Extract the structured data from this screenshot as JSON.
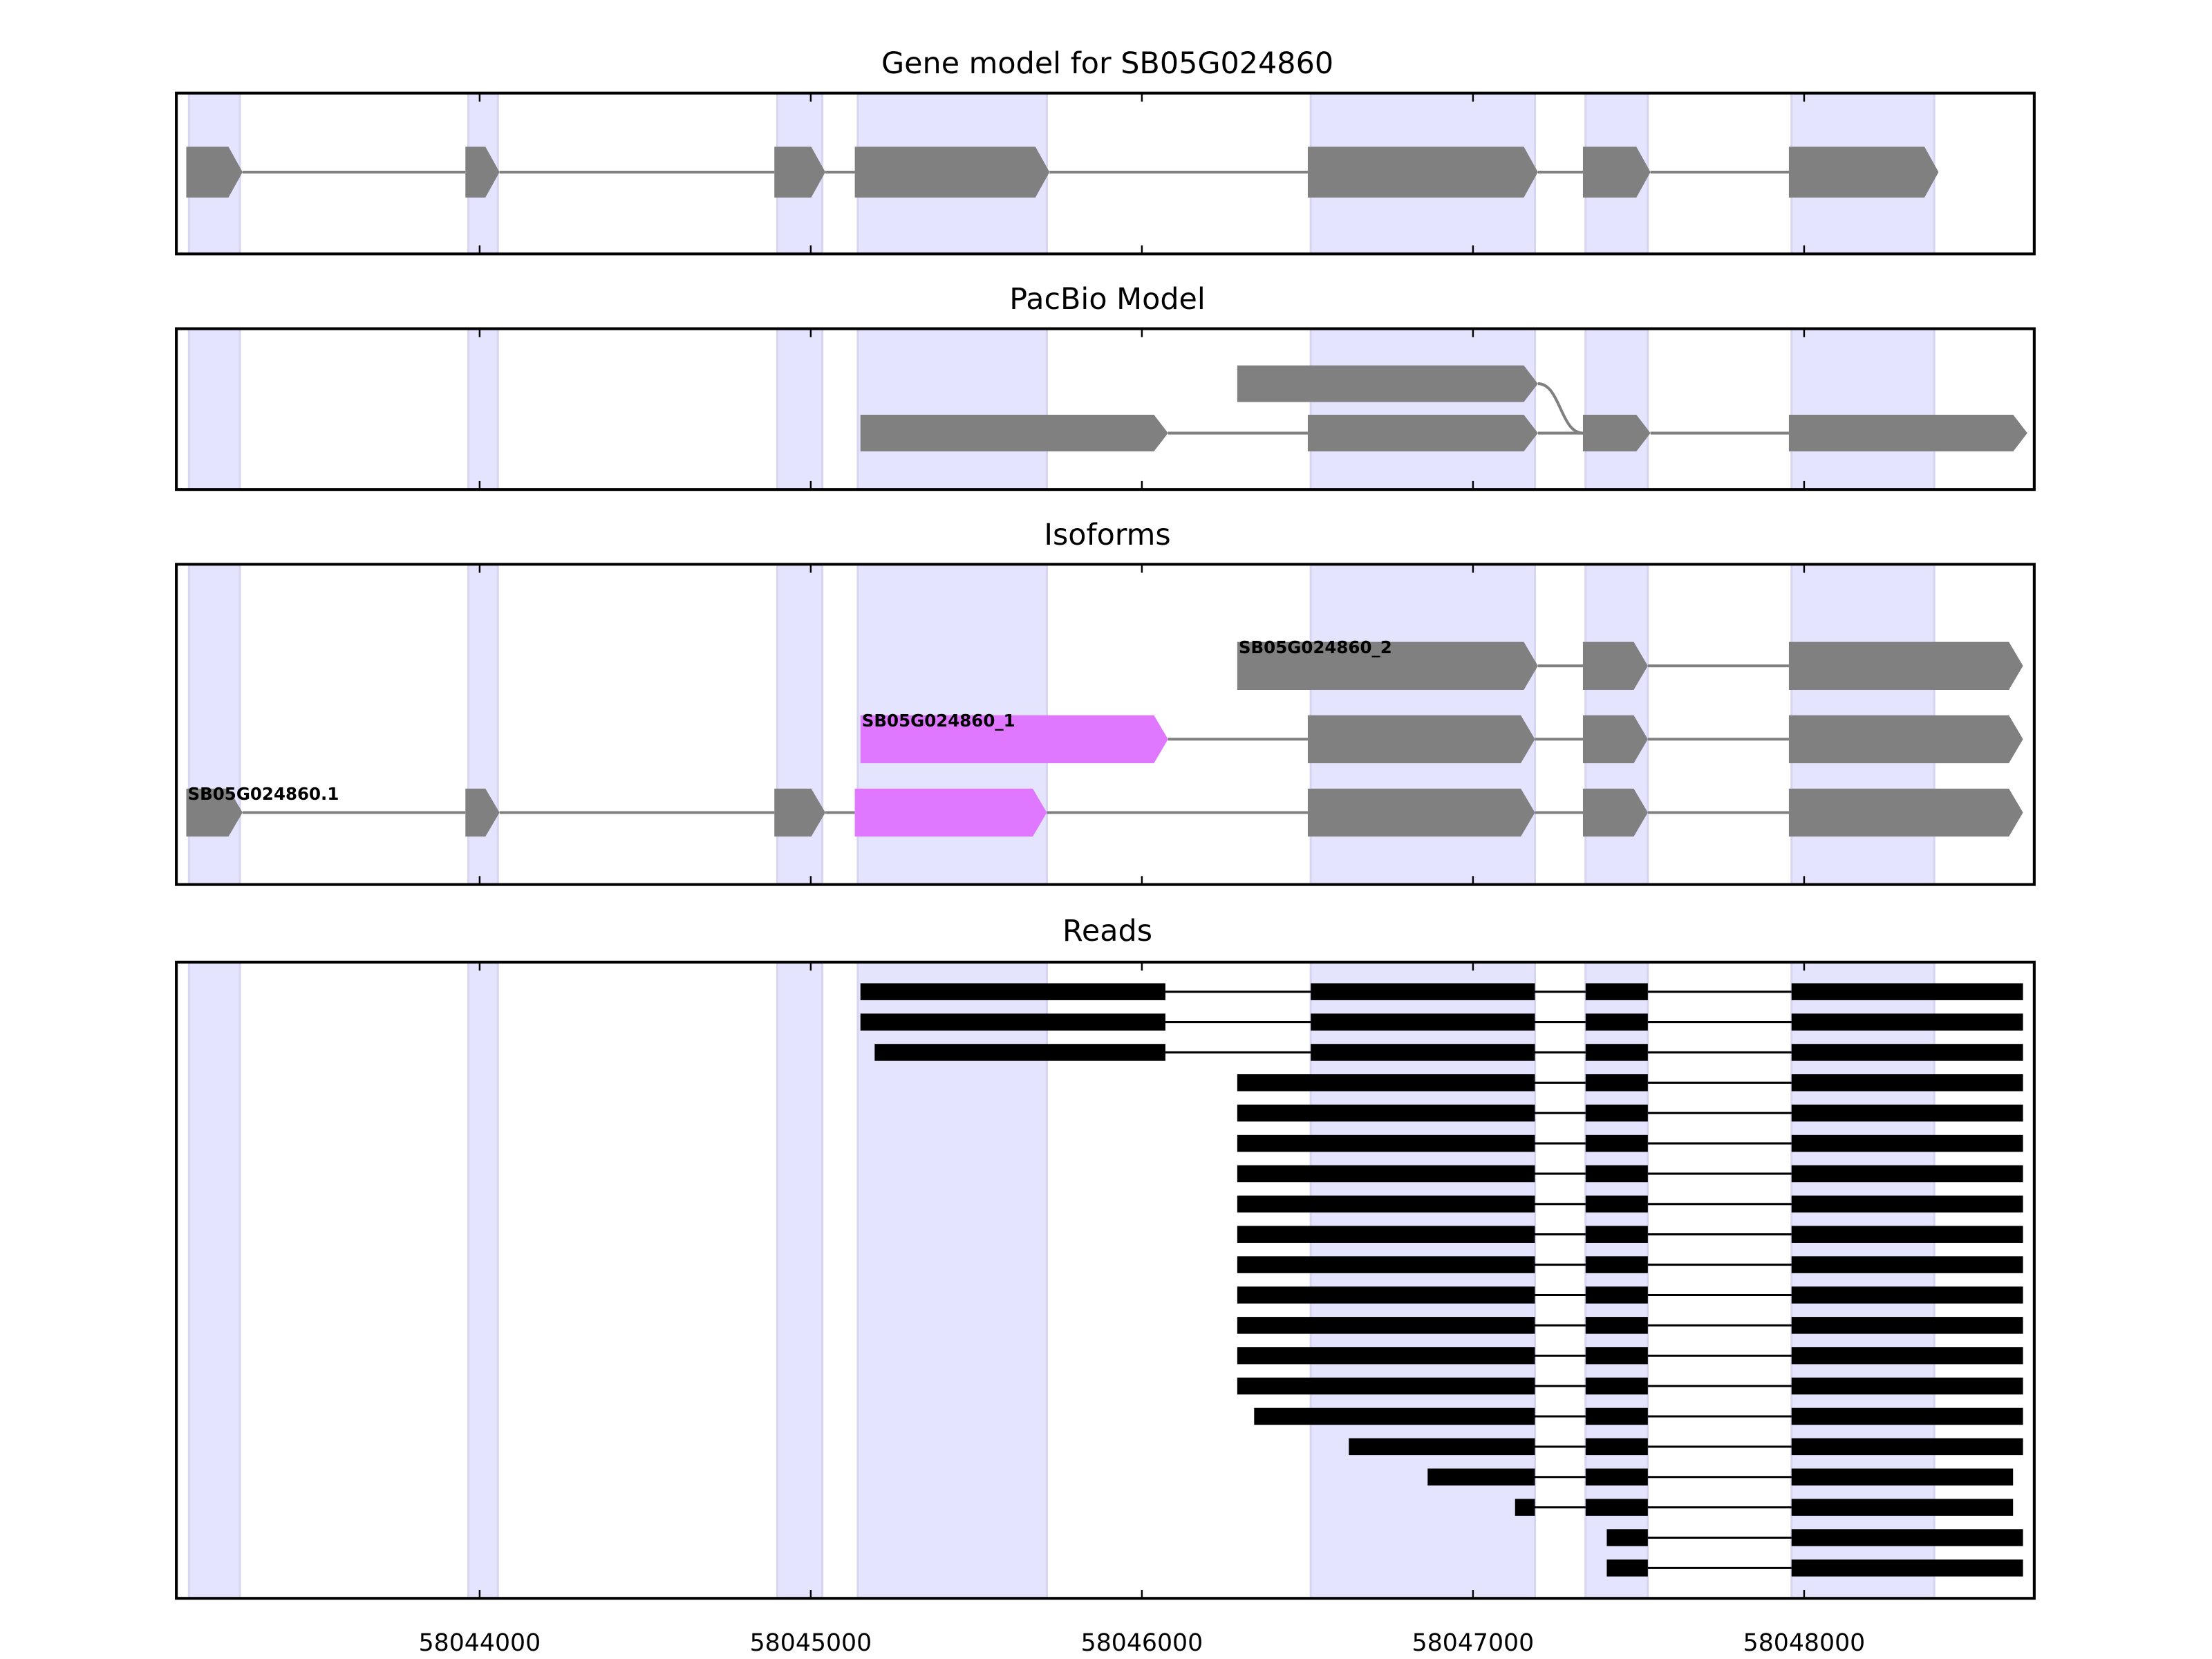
{
  "chart_data": {
    "type": "gene-track",
    "xlim": [
      58043084,
      58048695
    ],
    "x_ticks": [
      58044000,
      58045000,
      58046000,
      58047000,
      58048000
    ],
    "x_tick_labels": [
      "58044000",
      "58045000",
      "58046000",
      "58047000",
      "58048000"
    ],
    "colors": {
      "exon": "#808080",
      "highlight": "#df77ff",
      "shade": "#e4e4ff",
      "shade_edge": "#d6d6f2",
      "read": "#000000",
      "intron": "#808080"
    },
    "shaded_regions": [
      [
        58043122,
        58043276
      ],
      [
        58043966,
        58044055
      ],
      [
        58044899,
        58045035
      ],
      [
        58045142,
        58045713
      ],
      [
        58046510,
        58047187
      ],
      [
        58047340,
        58047528
      ],
      [
        58047962,
        58048393
      ]
    ],
    "panels": [
      {
        "title": "Gene model for SB05G024860",
        "tracks": [
          {
            "exons": [
              [
                58043114,
                58043284
              ],
              [
                58043957,
                58044060
              ],
              [
                58044890,
                58045044
              ],
              [
                58045133,
                58045721
              ],
              [
                58046501,
                58047196
              ],
              [
                58047332,
                58047536
              ],
              [
                58047954,
                58048406
              ]
            ]
          }
        ]
      },
      {
        "title": "PacBio Model",
        "tracks": [
          {
            "exons": [
              [
                58046288,
                58047196
              ]
            ],
            "splice_to_next_row": [
              58047196,
              58047332
            ]
          },
          {
            "exons": [
              [
                58045150,
                58046079
              ],
              [
                58046501,
                58047196
              ],
              [
                58047332,
                58047536
              ],
              [
                58047954,
                58048674
              ]
            ]
          }
        ]
      },
      {
        "title": "Isoforms",
        "tracks": [
          {
            "label": "SB05G024860_2",
            "exons": [
              [
                58046288,
                58047196
              ],
              [
                58047332,
                58047528
              ],
              [
                58047954,
                58048661
              ]
            ],
            "highlight": []
          },
          {
            "label": "SB05G024860_1",
            "exons": [
              [
                58045150,
                58046079
              ],
              [
                58046501,
                58047187
              ],
              [
                58047332,
                58047528
              ],
              [
                58047954,
                58048661
              ]
            ],
            "highlight": [
              0
            ]
          },
          {
            "label": "SB05G024860.1",
            "exons": [
              [
                58043114,
                58043284
              ],
              [
                58043957,
                58044060
              ],
              [
                58044890,
                58045044
              ],
              [
                58045133,
                58045713
              ],
              [
                58046501,
                58047187
              ],
              [
                58047332,
                58047528
              ],
              [
                58047954,
                58048661
              ]
            ],
            "highlight": [
              3
            ]
          }
        ]
      },
      {
        "title": "Reads",
        "reads": [
          [
            [
              58045150,
              58046071
            ],
            [
              58046510,
              58047187
            ],
            [
              58047340,
              58047528
            ],
            [
              58047962,
              58048661
            ]
          ],
          [
            [
              58045150,
              58046071
            ],
            [
              58046510,
              58047187
            ],
            [
              58047340,
              58047528
            ],
            [
              58047962,
              58048661
            ]
          ],
          [
            [
              58045193,
              58046071
            ],
            [
              58046510,
              58047187
            ],
            [
              58047340,
              58047528
            ],
            [
              58047962,
              58048661
            ]
          ],
          [
            [
              58046288,
              58047187
            ],
            [
              58047340,
              58047528
            ],
            [
              58047962,
              58048661
            ]
          ],
          [
            [
              58046288,
              58047187
            ],
            [
              58047340,
              58047528
            ],
            [
              58047962,
              58048661
            ]
          ],
          [
            [
              58046288,
              58047187
            ],
            [
              58047340,
              58047528
            ],
            [
              58047962,
              58048661
            ]
          ],
          [
            [
              58046288,
              58047187
            ],
            [
              58047340,
              58047528
            ],
            [
              58047962,
              58048661
            ]
          ],
          [
            [
              58046288,
              58047187
            ],
            [
              58047340,
              58047528
            ],
            [
              58047962,
              58048661
            ]
          ],
          [
            [
              58046288,
              58047187
            ],
            [
              58047340,
              58047528
            ],
            [
              58047962,
              58048661
            ]
          ],
          [
            [
              58046288,
              58047187
            ],
            [
              58047340,
              58047528
            ],
            [
              58047962,
              58048661
            ]
          ],
          [
            [
              58046288,
              58047187
            ],
            [
              58047340,
              58047528
            ],
            [
              58047962,
              58048661
            ]
          ],
          [
            [
              58046288,
              58047187
            ],
            [
              58047340,
              58047528
            ],
            [
              58047962,
              58048661
            ]
          ],
          [
            [
              58046288,
              58047187
            ],
            [
              58047340,
              58047528
            ],
            [
              58047962,
              58048661
            ]
          ],
          [
            [
              58046288,
              58047187
            ],
            [
              58047340,
              58047528
            ],
            [
              58047962,
              58048661
            ]
          ],
          [
            [
              58046339,
              58047187
            ],
            [
              58047340,
              58047528
            ],
            [
              58047962,
              58048661
            ]
          ],
          [
            [
              58046625,
              58047187
            ],
            [
              58047340,
              58047528
            ],
            [
              58047962,
              58048661
            ]
          ],
          [
            [
              58046863,
              58047187
            ],
            [
              58047340,
              58047528
            ],
            [
              58047962,
              58048631
            ]
          ],
          [
            [
              58047127,
              58047187
            ],
            [
              58047340,
              58047528
            ],
            [
              58047962,
              58048631
            ]
          ],
          [
            [
              58047404,
              58047528
            ],
            [
              58047962,
              58048661
            ]
          ],
          [
            [
              58047404,
              58047528
            ],
            [
              58047962,
              58048661
            ]
          ]
        ]
      }
    ]
  }
}
